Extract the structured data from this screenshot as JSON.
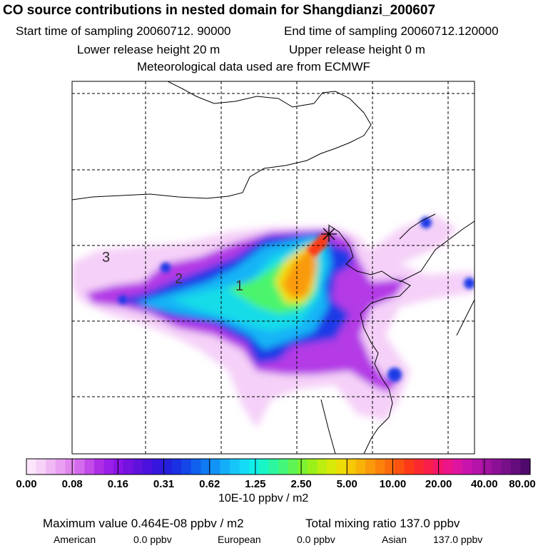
{
  "header": {
    "title": "CO  source contributions in nested domain for Shangdianzi_200607",
    "start_sampling": "Start time of sampling 20060712. 90000",
    "end_sampling": "End time of sampling 20060712.120000",
    "lower_release": "Lower release height   20 m",
    "upper_release": "Upper release height    0 m",
    "met_data": "Meteorological data used are from ECMWF"
  },
  "map": {
    "region_labels": [
      "3",
      "2",
      "1"
    ],
    "receptor_marker": "plus-cross"
  },
  "colorbar": {
    "tick_labels": [
      "0.00",
      "0.08",
      "0.16",
      "0.31",
      "0.62",
      "1.25",
      "2.50",
      "5.00",
      "10.00",
      "20.00",
      "40.00",
      "80.00"
    ],
    "colors": [
      "#fbe6fb",
      "#f6d1f8",
      "#f0b8f5",
      "#eaa0f2",
      "#e088ee",
      "#d46aec",
      "#c24be9",
      "#ae2ee6",
      "#9a1fe8",
      "#8a14e6",
      "#7412e0",
      "#5e12dc",
      "#4a12dc",
      "#3616dd",
      "#2420dc",
      "#1a30e2",
      "#1446e8",
      "#1060ee",
      "#107af2",
      "#1294f6",
      "#14aef8",
      "#16c6fa",
      "#14dcf6",
      "#10eeea",
      "#18f6c8",
      "#2cf6a0",
      "#44f67a",
      "#5ef454",
      "#7cf230",
      "#9cf01a",
      "#bcee10",
      "#d8ea08",
      "#eedc06",
      "#f6c806",
      "#f8b208",
      "#fa9a0a",
      "#fc820c",
      "#fc6a0e",
      "#fc5210",
      "#fc3a18",
      "#fc2a30",
      "#fa1e4a",
      "#f4166a",
      "#ec1488",
      "#dc14a0",
      "#c814ac",
      "#b414a8",
      "#a012a0",
      "#8c1096",
      "#78108a",
      "#640c7c",
      "#500a6c"
    ],
    "units": "10E-10 ppbv / m2"
  },
  "summary": {
    "maximum_value": "Maximum value  0.464E-08 ppbv / m2",
    "total_mixing_ratio": "Total mixing ratio      137.0 ppbv",
    "american_label": "American",
    "american_value": "0.0 ppbv",
    "european_label": "European",
    "european_value": "0.0 ppbv",
    "asian_label": "Asian",
    "asian_value": "137.0 ppbv"
  }
}
